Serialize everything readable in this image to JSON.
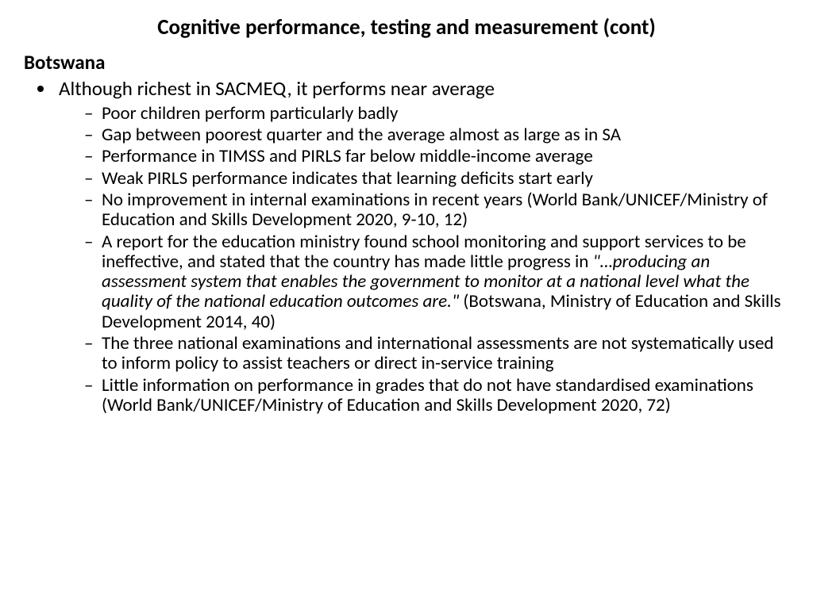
{
  "title": "Cognitive performance, testing and measurement (cont)",
  "subheading": "Botswana",
  "main_bullet": "Although richest in SACMEQ, it performs near average",
  "sub_bullets": [
    {
      "text": "Poor children perform particularly badly"
    },
    {
      "text": "Gap between poorest quarter and the average almost as large as in SA"
    },
    {
      "text": "Performance in TIMSS and PIRLS far below middle-income average"
    },
    {
      "text": "Weak PIRLS performance indicates that learning deficits start early"
    },
    {
      "text": "No improvement in internal examinations in recent years (World Bank/UNICEF/Ministry of Education and Skills Development 2020, 9-10, 12)"
    },
    {
      "pre": "A report for the education ministry found school monitoring and support services to be ineffective, and stated that the country has made little progress in ",
      "italic": "\"…producing an assessment system that enables the government to monitor at a national level what the quality of the national education outcomes are.\"",
      "post": " (Botswana, Ministry of Education and Skills Development 2014, 40)"
    },
    {
      "text": "The three national examinations and international assessments are not systematically used to inform policy to assist teachers or direct in-service training"
    },
    {
      "text": "Little information on performance in grades that do not have standardised examinations (World Bank/UNICEF/Ministry of Education and Skills Development 2020, 72)"
    }
  ],
  "colors": {
    "background": "#ffffff",
    "text": "#000000"
  },
  "typography": {
    "title_fontsize": 27,
    "subheading_fontsize": 25,
    "level1_fontsize": 25,
    "level2_fontsize": 23,
    "font_family": "Calibri"
  }
}
